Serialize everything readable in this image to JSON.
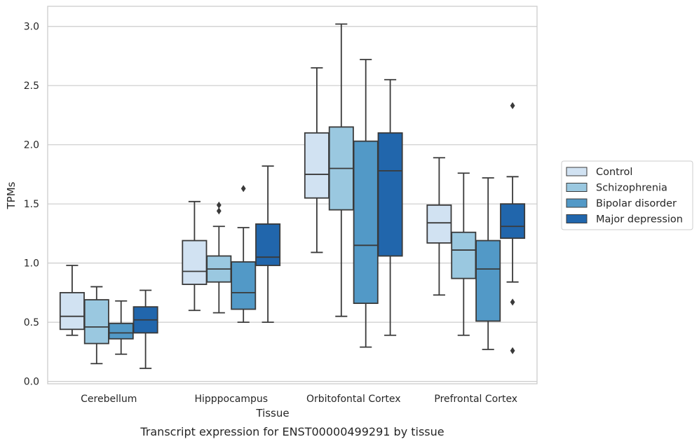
{
  "chart_data": {
    "type": "box",
    "xlabel": "Tissue",
    "ylabel": "TPMs",
    "caption": "Transcript expression for ENST00000499291 by tissue",
    "ylim": [
      -0.02,
      3.17
    ],
    "yticks": [
      0.0,
      0.5,
      1.0,
      1.5,
      2.0,
      2.5,
      3.0
    ],
    "ytick_labels": [
      "0.0",
      "0.5",
      "1.0",
      "1.5",
      "2.0",
      "2.5",
      "3.0"
    ],
    "grid": true,
    "legend_position": "right",
    "categories": [
      "Cerebellum",
      "Hipppocampus",
      "Orbitofontal Cortex",
      "Prefrontal Cortex"
    ],
    "series": [
      {
        "name": "Control",
        "color": "#d1e2f2",
        "boxes": [
          {
            "whislo": 0.39,
            "q1": 0.44,
            "med": 0.55,
            "q3": 0.75,
            "whishi": 0.98,
            "fliers": []
          },
          {
            "whislo": 0.6,
            "q1": 0.82,
            "med": 0.93,
            "q3": 1.19,
            "whishi": 1.52,
            "fliers": []
          },
          {
            "whislo": 1.09,
            "q1": 1.55,
            "med": 1.75,
            "q3": 2.1,
            "whishi": 2.65,
            "fliers": []
          },
          {
            "whislo": 0.73,
            "q1": 1.17,
            "med": 1.34,
            "q3": 1.49,
            "whishi": 1.89,
            "fliers": []
          }
        ]
      },
      {
        "name": "Schizophrenia",
        "color": "#9ac8e0",
        "boxes": [
          {
            "whislo": 0.15,
            "q1": 0.32,
            "med": 0.46,
            "q3": 0.69,
            "whishi": 0.8,
            "fliers": []
          },
          {
            "whislo": 0.58,
            "q1": 0.84,
            "med": 0.95,
            "q3": 1.06,
            "whishi": 1.31,
            "fliers": [
              1.44,
              1.49
            ]
          },
          {
            "whislo": 0.55,
            "q1": 1.45,
            "med": 1.8,
            "q3": 2.15,
            "whishi": 3.02,
            "fliers": []
          },
          {
            "whislo": 0.39,
            "q1": 0.87,
            "med": 1.11,
            "q3": 1.26,
            "whishi": 1.76,
            "fliers": []
          }
        ]
      },
      {
        "name": "Bipolar disorder",
        "color": "#5299c7",
        "boxes": [
          {
            "whislo": 0.23,
            "q1": 0.36,
            "med": 0.41,
            "q3": 0.49,
            "whishi": 0.68,
            "fliers": []
          },
          {
            "whislo": 0.5,
            "q1": 0.61,
            "med": 0.75,
            "q3": 1.01,
            "whishi": 1.3,
            "fliers": [
              1.63
            ]
          },
          {
            "whislo": 0.29,
            "q1": 0.66,
            "med": 1.15,
            "q3": 2.03,
            "whishi": 2.72,
            "fliers": []
          },
          {
            "whislo": 0.27,
            "q1": 0.51,
            "med": 0.95,
            "q3": 1.19,
            "whishi": 1.72,
            "fliers": []
          }
        ]
      },
      {
        "name": "Major depression",
        "color": "#2166ac",
        "boxes": [
          {
            "whislo": 0.11,
            "q1": 0.41,
            "med": 0.52,
            "q3": 0.63,
            "whishi": 0.77,
            "fliers": []
          },
          {
            "whislo": 0.5,
            "q1": 0.98,
            "med": 1.05,
            "q3": 1.33,
            "whishi": 1.82,
            "fliers": []
          },
          {
            "whislo": 0.39,
            "q1": 1.06,
            "med": 1.78,
            "q3": 2.1,
            "whishi": 2.55,
            "fliers": []
          },
          {
            "whislo": 0.84,
            "q1": 1.21,
            "med": 1.31,
            "q3": 1.5,
            "whishi": 1.73,
            "fliers": [
              0.26,
              0.67,
              2.33
            ]
          }
        ]
      }
    ],
    "colors": {
      "grid": "#cccccc",
      "spine": "#cccccc",
      "edge": "#3a3a3a",
      "legend_edge": "#cccccc"
    }
  }
}
